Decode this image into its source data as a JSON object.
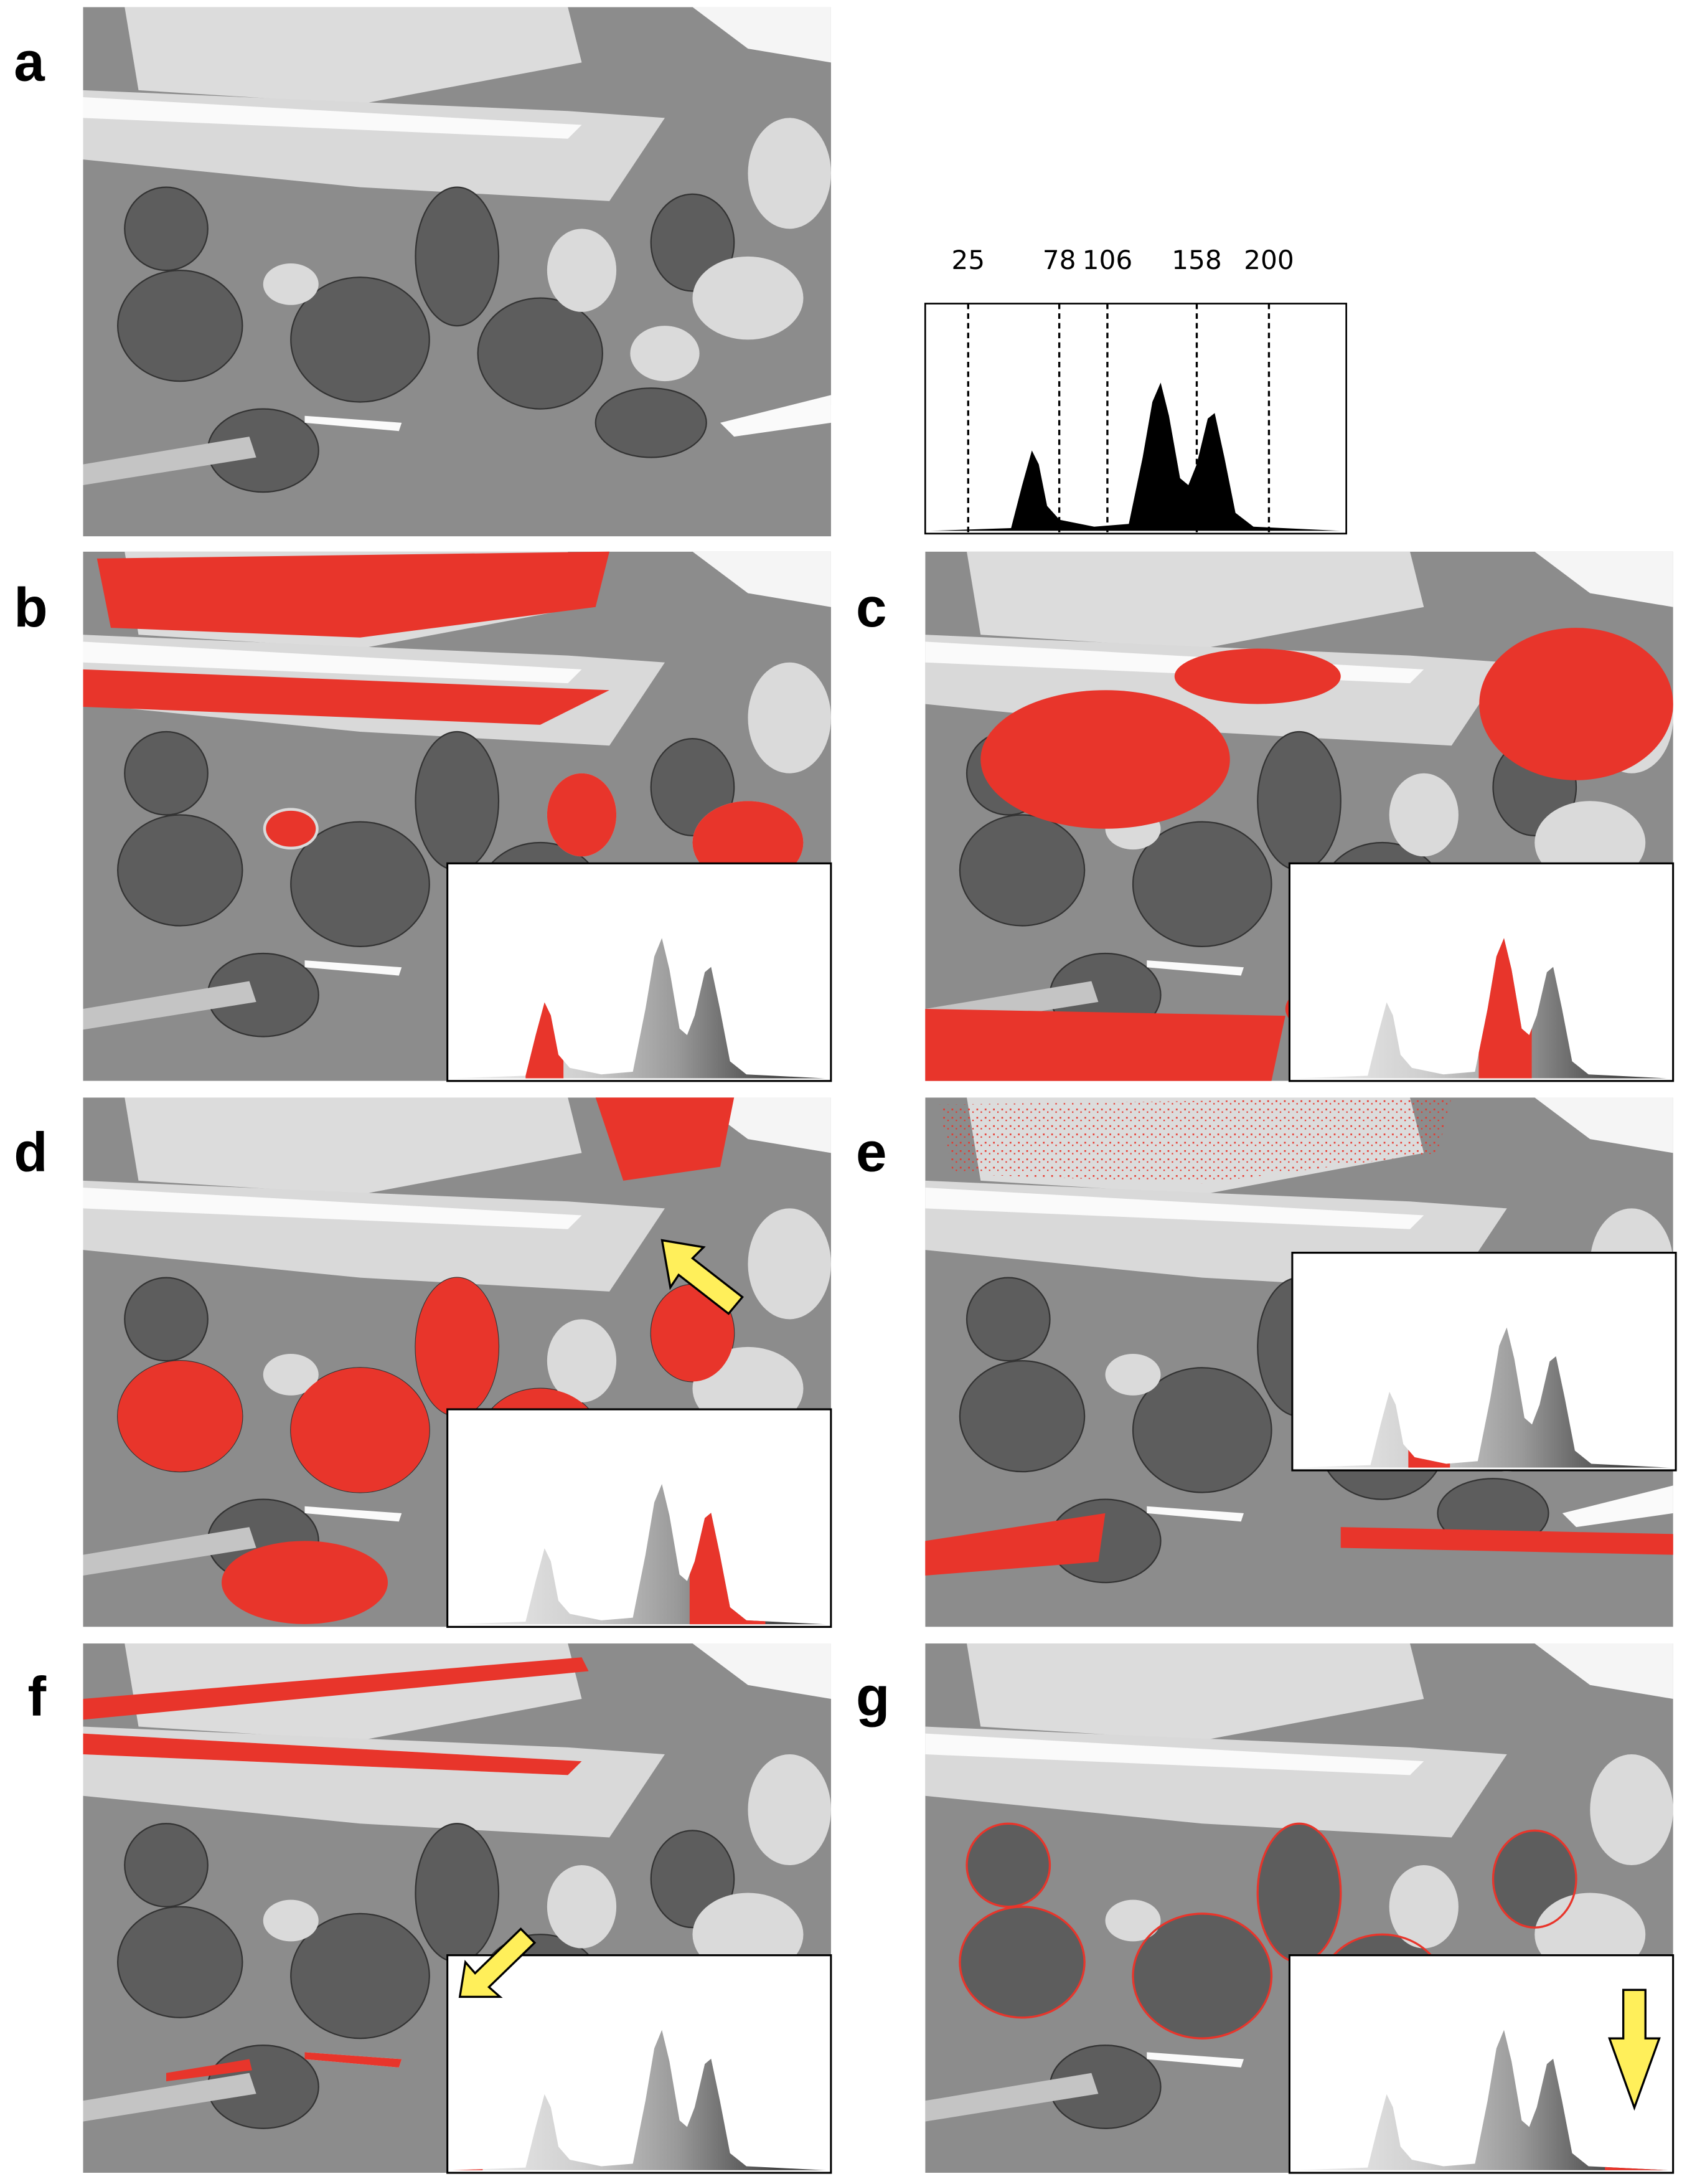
{
  "panels": [
    "a",
    "b",
    "c",
    "d",
    "e",
    "f",
    "g"
  ],
  "histogram": {
    "xlim": [
      0,
      245
    ],
    "ticks": [
      25,
      78,
      106,
      158,
      200
    ]
  }
}
